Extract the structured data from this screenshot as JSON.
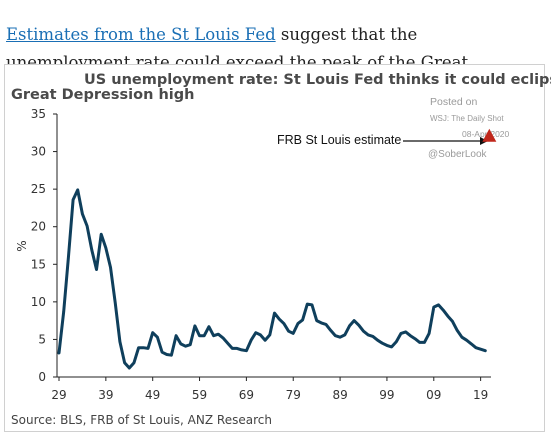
{
  "article": {
    "link_text": "Estimates from the St Louis Fed",
    "rest_text": " suggest that the unemployment rate could exceed the peak of the Great Depression."
  },
  "chart_data": {
    "type": "line",
    "title_line1": "US unemployment rate: St Louis Fed thinks it could eclipse the",
    "title_line2": "Great Depression high",
    "ylabel": "%",
    "xlabel": "",
    "ylim": [
      0,
      35
    ],
    "xlim": [
      1929,
      2021
    ],
    "yticks": [
      0,
      5,
      10,
      15,
      20,
      25,
      30,
      35
    ],
    "xticks": [
      1929,
      1939,
      1949,
      1959,
      1969,
      1979,
      1989,
      1999,
      2009,
      2019
    ],
    "xtick_labels": [
      "29",
      "39",
      "49",
      "59",
      "69",
      "79",
      "89",
      "99",
      "09",
      "19"
    ],
    "series": [
      {
        "color": "#0f3f5c",
        "x": [
          1929,
          1930,
          1931,
          1932,
          1933,
          1934,
          1935,
          1936,
          1937,
          1938,
          1939,
          1940,
          1941,
          1942,
          1943,
          1944,
          1945,
          1946,
          1947,
          1948,
          1949,
          1950,
          1951,
          1952,
          1953,
          1954,
          1955,
          1956,
          1957,
          1958,
          1959,
          1960,
          1961,
          1962,
          1963,
          1964,
          1965,
          1966,
          1967,
          1968,
          1969,
          1970,
          1971,
          1972,
          1973,
          1974,
          1975,
          1976,
          1977,
          1978,
          1979,
          1980,
          1981,
          1982,
          1983,
          1984,
          1985,
          1986,
          1987,
          1988,
          1989,
          1990,
          1991,
          1992,
          1993,
          1994,
          1995,
          1996,
          1997,
          1998,
          1999,
          2000,
          2001,
          2002,
          2003,
          2004,
          2005,
          2006,
          2007,
          2008,
          2009,
          2010,
          2011,
          2012,
          2013,
          2014,
          2015,
          2016,
          2017,
          2018,
          2019,
          2020
        ],
        "y": [
          3.2,
          8.7,
          15.9,
          23.6,
          24.9,
          21.7,
          20.1,
          16.9,
          14.3,
          19.0,
          17.2,
          14.6,
          9.9,
          4.7,
          1.9,
          1.2,
          1.9,
          3.9,
          3.9,
          3.8,
          5.9,
          5.3,
          3.3,
          3.0,
          2.9,
          5.5,
          4.4,
          4.1,
          4.3,
          6.8,
          5.5,
          5.5,
          6.7,
          5.5,
          5.7,
          5.2,
          4.5,
          3.8,
          3.8,
          3.6,
          3.5,
          4.9,
          5.9,
          5.6,
          4.9,
          5.6,
          8.5,
          7.7,
          7.1,
          6.1,
          5.8,
          7.1,
          7.6,
          9.7,
          9.6,
          7.5,
          7.2,
          7.0,
          6.2,
          5.5,
          5.3,
          5.6,
          6.8,
          7.5,
          6.9,
          6.1,
          5.6,
          5.4,
          4.9,
          4.5,
          4.2,
          4.0,
          4.7,
          5.8,
          6.0,
          5.5,
          5.1,
          4.6,
          4.6,
          5.8,
          9.3,
          9.6,
          8.9,
          8.1,
          7.4,
          6.2,
          5.3,
          4.9,
          4.4,
          3.9,
          3.7,
          3.5
        ]
      }
    ],
    "estimate_point": {
      "x": 2020,
      "y": 32.1,
      "color": "#c0271b"
    },
    "annotation": "FRB St Louis estimate",
    "source": "Source: BLS, FRB of St Louis, ANZ Research",
    "grid": false
  },
  "watermark": {
    "line1": "Posted on",
    "line2": "WSJ: The Daily Shot",
    "line3": "08-Apr-2020",
    "line4": "@SoberLook"
  }
}
